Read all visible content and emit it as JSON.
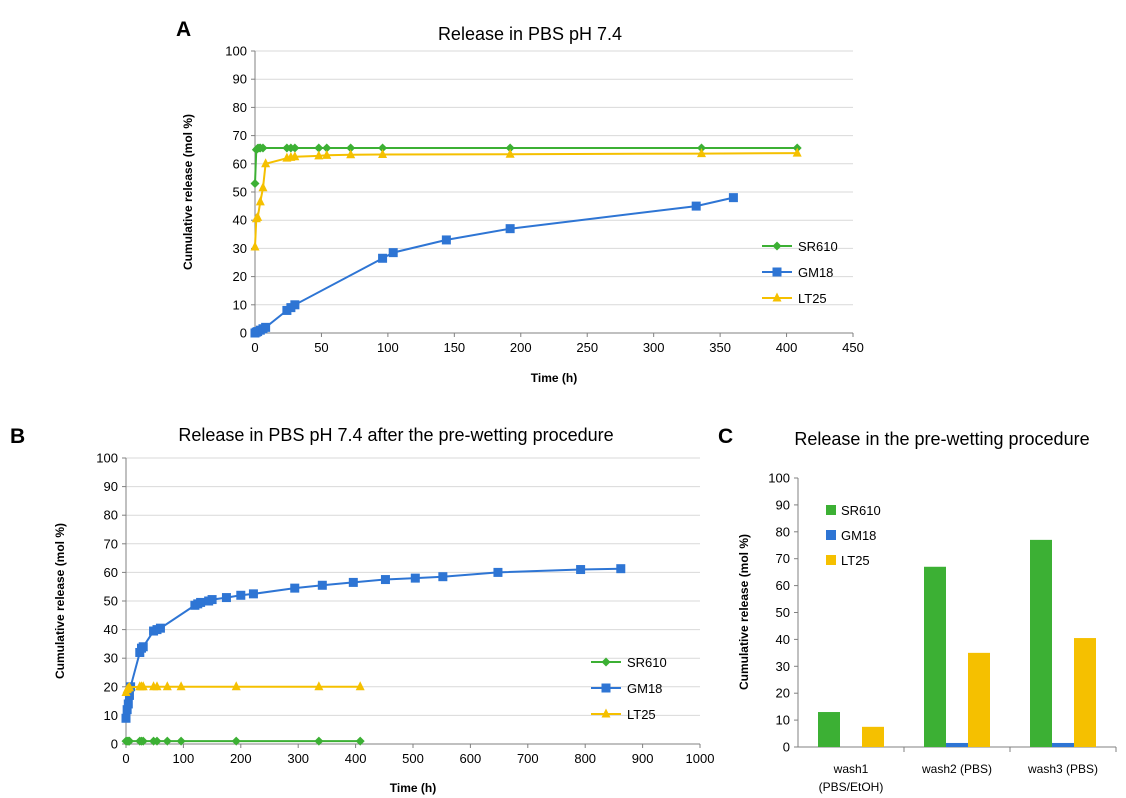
{
  "chart_data": [
    {
      "id": "A",
      "panel_label": "A",
      "type": "line",
      "title": "Release in PBS pH 7.4",
      "xlabel": "Time (h)",
      "ylabel": "Cumulative release (mol %)",
      "xlim": [
        0,
        450
      ],
      "ylim": [
        0,
        100
      ],
      "xticks": [
        0,
        50,
        100,
        150,
        200,
        250,
        300,
        350,
        400,
        450
      ],
      "yticks": [
        0,
        10,
        20,
        30,
        40,
        50,
        60,
        70,
        80,
        90,
        100
      ],
      "grid": true,
      "legend": "right",
      "series": [
        {
          "name": "SR610",
          "color": "#3cb034",
          "marker": "diamond",
          "x": [
            0,
            1,
            2,
            3,
            4,
            6,
            24,
            27,
            30,
            48,
            54,
            72,
            96,
            192,
            336,
            408
          ],
          "y": [
            53,
            65,
            65.5,
            65.6,
            65.6,
            65.6,
            65.6,
            65.6,
            65.6,
            65.6,
            65.6,
            65.6,
            65.6,
            65.6,
            65.6,
            65.6
          ]
        },
        {
          "name": "GM18",
          "color": "#2e75d4",
          "marker": "square",
          "x": [
            0,
            1,
            2,
            4,
            6,
            8,
            24,
            27,
            30,
            96,
            104,
            144,
            192,
            332,
            360
          ],
          "y": [
            0,
            0.3,
            0.5,
            1,
            1.5,
            2,
            8,
            9,
            10,
            26.5,
            28.5,
            33,
            37,
            45,
            48
          ]
        },
        {
          "name": "LT25",
          "color": "#f5c000",
          "marker": "triangle",
          "x": [
            0,
            1,
            2,
            4,
            6,
            8,
            24,
            27,
            30,
            48,
            54,
            72,
            96,
            192,
            336,
            408
          ],
          "y": [
            30.5,
            40.5,
            41,
            46.5,
            51.5,
            60,
            62,
            62.3,
            62.5,
            62.8,
            63,
            63.2,
            63.3,
            63.4,
            63.6,
            63.8
          ]
        }
      ]
    },
    {
      "id": "B",
      "panel_label": "B",
      "type": "line",
      "title": "Release in PBS pH 7.4 after the pre-wetting procedure",
      "xlabel": "Time (h)",
      "ylabel": "Cumulative release (mol %)",
      "xlim": [
        0,
        1000
      ],
      "ylim": [
        0,
        100
      ],
      "xticks": [
        0,
        100,
        200,
        300,
        400,
        500,
        600,
        700,
        800,
        900,
        1000
      ],
      "yticks": [
        0,
        10,
        20,
        30,
        40,
        50,
        60,
        70,
        80,
        90,
        100
      ],
      "grid": true,
      "legend": "right",
      "series": [
        {
          "name": "SR610",
          "color": "#3cb034",
          "marker": "diamond",
          "x": [
            0,
            2,
            4,
            6,
            24,
            27,
            30,
            48,
            54,
            72,
            96,
            192,
            336,
            408
          ],
          "y": [
            1,
            1,
            1,
            1,
            1,
            1,
            1,
            1,
            1,
            1,
            1,
            1,
            1,
            1
          ]
        },
        {
          "name": "GM18",
          "color": "#2e75d4",
          "marker": "square",
          "x": [
            0,
            2,
            4,
            6,
            8,
            24,
            27,
            30,
            48,
            54,
            60,
            120,
            125,
            130,
            144,
            150,
            175,
            200,
            222,
            294,
            342,
            396,
            452,
            504,
            552,
            648,
            792,
            862
          ],
          "y": [
            9,
            12,
            14,
            17,
            20,
            32,
            33.5,
            34,
            39.5,
            40,
            40.5,
            48.5,
            49,
            49.5,
            50,
            50.5,
            51.2,
            52,
            52.5,
            54.5,
            55.5,
            56.5,
            57.5,
            58,
            58.5,
            60,
            61,
            61.3
          ]
        },
        {
          "name": "LT25",
          "color": "#f5c000",
          "marker": "triangle",
          "x": [
            0,
            2,
            4,
            6,
            24,
            27,
            30,
            48,
            54,
            72,
            96,
            192,
            336,
            408
          ],
          "y": [
            18,
            19,
            19.5,
            19.8,
            20,
            20,
            20,
            20,
            20,
            20,
            20,
            20,
            20,
            20
          ]
        }
      ]
    },
    {
      "id": "C",
      "panel_label": "C",
      "type": "bar",
      "title": "Release in the pre-wetting procedure",
      "xlabel": "",
      "ylabel": "Cumulative release (mol %)",
      "ylim": [
        0,
        100
      ],
      "yticks": [
        0,
        10,
        20,
        30,
        40,
        50,
        60,
        70,
        80,
        90,
        100
      ],
      "grid": false,
      "legend": "top-left",
      "categories": [
        {
          "line1": "wash1",
          "line2": "(PBS/EtOH)"
        },
        {
          "line1": "wash2 (PBS)",
          "line2": ""
        },
        {
          "line1": "wash3 (PBS)",
          "line2": ""
        }
      ],
      "series": [
        {
          "name": "SR610",
          "color": "#3cb034",
          "values": [
            13,
            67,
            77
          ]
        },
        {
          "name": "GM18",
          "color": "#2e75d4",
          "values": [
            0,
            1.5,
            1.5
          ]
        },
        {
          "name": "LT25",
          "color": "#f5c000",
          "values": [
            7.5,
            35,
            40.5
          ]
        }
      ]
    }
  ]
}
